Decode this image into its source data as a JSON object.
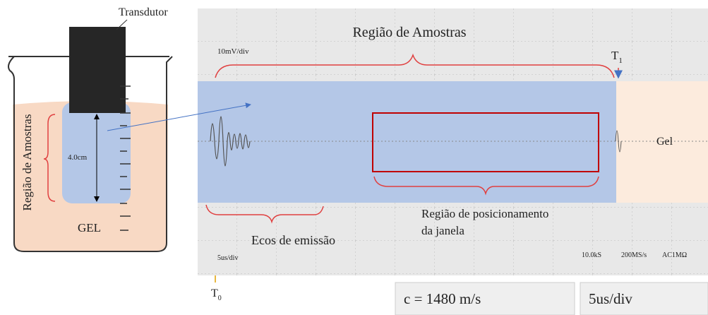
{
  "beaker": {
    "transducer_label": "Transdutor",
    "side_label": "Região de Amostras",
    "distance_label": "4.0cm",
    "medium_label": "GEL"
  },
  "scope": {
    "top_label": "Região de Amostras",
    "volts_per_div": "10mV/div",
    "t1": {
      "letter": "T",
      "sub": "1"
    },
    "gel_label": "Gel",
    "window_label": [
      "Região de posicionamento",
      "da janela"
    ],
    "echo_label": "Ecos de emissão",
    "time_per_div": "5us/div",
    "samples": "10.0kS",
    "rate": "200MS/s",
    "coupling": "AC1MΩ",
    "t0": {
      "letter": "T",
      "sub": "0"
    }
  },
  "readouts": [
    "c = 1480 m/s",
    "5us/div"
  ]
}
